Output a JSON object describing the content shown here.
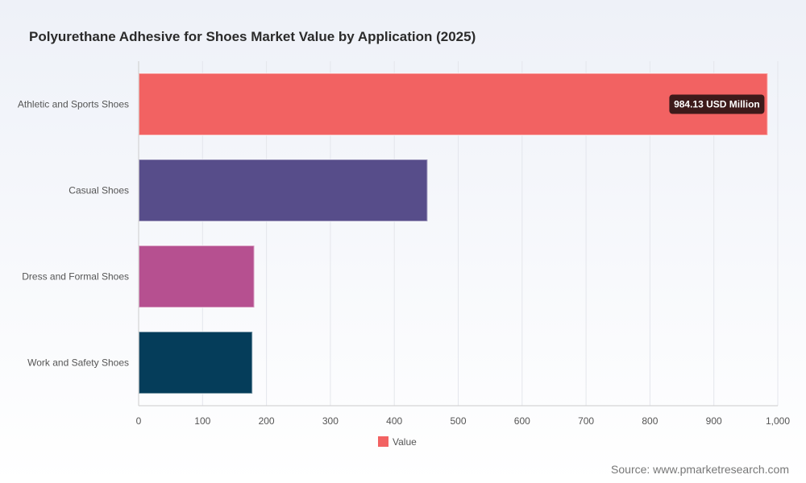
{
  "chart_data": {
    "type": "bar",
    "orientation": "horizontal",
    "title": "Polyurethane Adhesive for Shoes Market Value by Application (2025)",
    "categories": [
      "Athletic and Sports Shoes",
      "Casual Shoes",
      "Dress and Formal Shoes",
      "Work and Safety Shoes"
    ],
    "series": [
      {
        "name": "Value",
        "values": [
          984.13,
          452,
          181,
          178
        ]
      }
    ],
    "bar_colors": [
      "#f26262",
      "#574d8a",
      "#b65090",
      "#053d5a"
    ],
    "xlim": [
      0,
      1000
    ],
    "x_ticks": [
      0,
      100,
      200,
      300,
      400,
      500,
      600,
      700,
      800,
      900,
      1000
    ],
    "x_tick_labels": [
      "0",
      "100",
      "200",
      "300",
      "400",
      "500",
      "600",
      "700",
      "800",
      "900",
      "1,000"
    ],
    "grid": true,
    "legend_position": "bottom",
    "annotation": {
      "category": "Athletic and Sports Shoes",
      "text": "984.13 USD Million"
    }
  },
  "source": "Source: www.pmarketresearch.com"
}
